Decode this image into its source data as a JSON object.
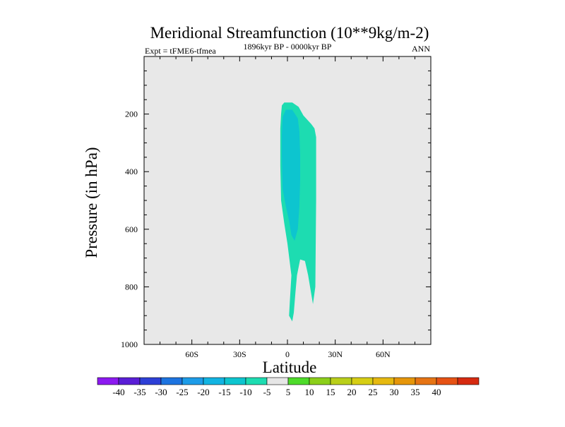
{
  "chart_data": {
    "type": "contour",
    "title": "Meridional Streamfunction (10**9kg/m-2)",
    "left_subtitle": "Expt = tFME6-tfmea",
    "center_subtitle": "1896kyr BP - 0000kyr BP",
    "right_subtitle": "ANN",
    "xlabel": "Latitude",
    "ylabel": "Pressure (in hPa)",
    "xlim": [
      -90,
      90
    ],
    "ylim": [
      1000,
      0
    ],
    "x_ticks": [
      {
        "value": -60,
        "label": "60S"
      },
      {
        "value": -30,
        "label": "30S"
      },
      {
        "value": 0,
        "label": "0"
      },
      {
        "value": 30,
        "label": "30N"
      },
      {
        "value": 60,
        "label": "60N"
      }
    ],
    "y_ticks": [
      {
        "value": 200,
        "label": "200"
      },
      {
        "value": 400,
        "label": "400"
      },
      {
        "value": 600,
        "label": "600"
      },
      {
        "value": 800,
        "label": "800"
      },
      {
        "value": 1000,
        "label": "1000"
      }
    ],
    "x_minor_step": 10,
    "y_minor_step": 50,
    "background_color": "#e8e8e8",
    "regions": [
      {
        "name": "minus10-to-minus5",
        "range": [
          -10,
          -5
        ],
        "color": "#1ddcb1",
        "points": [
          [
            -3.5,
            170
          ],
          [
            -2,
            160
          ],
          [
            3,
            160
          ],
          [
            7,
            175
          ],
          [
            10,
            205
          ],
          [
            15,
            235
          ],
          [
            17,
            250
          ],
          [
            18,
            280
          ],
          [
            18,
            500
          ],
          [
            17.5,
            800
          ],
          [
            16,
            860
          ],
          [
            13,
            760
          ],
          [
            11,
            710
          ],
          [
            8,
            705
          ],
          [
            6,
            760
          ],
          [
            5,
            820
          ],
          [
            4,
            890
          ],
          [
            3,
            920
          ],
          [
            1,
            900
          ],
          [
            1.5,
            850
          ],
          [
            2.5,
            760
          ],
          [
            0,
            650
          ],
          [
            -2,
            580
          ],
          [
            -4,
            500
          ],
          [
            -4.5,
            380
          ],
          [
            -4.5,
            250
          ],
          [
            -4,
            200
          ]
        ]
      },
      {
        "name": "minus15-to-minus10",
        "range": [
          -15,
          -10
        ],
        "color": "#0dc5cf",
        "points": [
          [
            -3,
            210
          ],
          [
            -1,
            185
          ],
          [
            3,
            185
          ],
          [
            6.5,
            215
          ],
          [
            7.5,
            260
          ],
          [
            8,
            340
          ],
          [
            8,
            430
          ],
          [
            7.5,
            520
          ],
          [
            6.5,
            600
          ],
          [
            4.5,
            640
          ],
          [
            2.5,
            620
          ],
          [
            1,
            570
          ],
          [
            -1,
            520
          ],
          [
            -3,
            460
          ],
          [
            -3.5,
            350
          ],
          [
            -3.5,
            270
          ]
        ]
      }
    ],
    "colorbar": {
      "colors": [
        "#8c19f0",
        "#5a1ed6",
        "#2d3fd6",
        "#1d74e0",
        "#1d9ce8",
        "#12b4e2",
        "#0dc5cf",
        "#1ddcb1",
        "#e6e6e6",
        "#4edb2a",
        "#8ccf1a",
        "#b9cf1a",
        "#d6ce14",
        "#e6b910",
        "#e6960a",
        "#e67414",
        "#e65214",
        "#d62a10"
      ],
      "labels": [
        "-40",
        "-35",
        "-30",
        "-25",
        "-20",
        "-15",
        "-10",
        "-5",
        "5",
        "10",
        "15",
        "20",
        "25",
        "30",
        "35",
        "40"
      ]
    }
  }
}
